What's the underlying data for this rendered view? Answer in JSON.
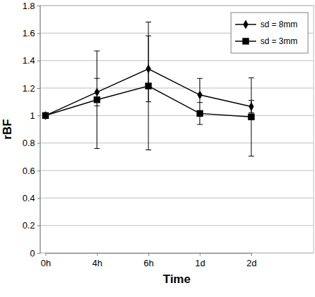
{
  "chart_data": {
    "type": "line",
    "x_label": "Time",
    "y_label": "rBF",
    "categories": [
      "0h",
      "4h",
      "6h",
      "1d",
      "2d"
    ],
    "series": [
      {
        "name": "sd = 8mm",
        "color": "#000000",
        "marker": "diamond",
        "line_style": "solid",
        "values": [
          1,
          1.17,
          1.34,
          1.15,
          1.065
        ],
        "errors": [
          0,
          0.1,
          0.24,
          0.12,
          0.045
        ]
      },
      {
        "name": "sd = 3mm",
        "color": "#000000",
        "marker": "square",
        "line_style": "solid",
        "values": [
          1,
          1.115,
          1.215,
          1.015,
          0.99
        ],
        "errors": [
          0,
          0.355,
          0.465,
          0.08,
          0.285
        ]
      }
    ],
    "ylim": [
      0,
      1.8
    ],
    "yticks": [
      0,
      0.2,
      0.4,
      0.6,
      0.8,
      1,
      1.2,
      1.4,
      1.6,
      1.8
    ],
    "grid": true,
    "legend": "top-right"
  }
}
